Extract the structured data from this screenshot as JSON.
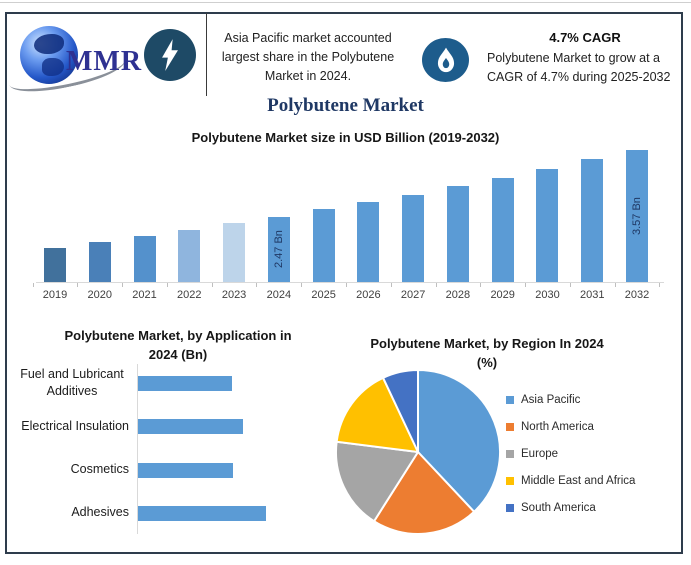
{
  "brand": {
    "name": "MMR"
  },
  "header": {
    "stat1": {
      "icon": "lightning-bolt",
      "lines": [
        "Asia Pacific market accounted",
        "largest share in the Polybutene",
        "Market in 2024."
      ]
    },
    "stat2": {
      "icon": "flame",
      "heading": "4.7% CAGR",
      "lines": [
        "Polybutene Market to grow at a",
        "CAGR of 4.7% during 2025-2032"
      ]
    }
  },
  "page_title": "Polybutene Market",
  "colors": {
    "accent_blue": "#5b9bd5",
    "navy_title": "#1f3864",
    "frame_border": "#2e3c4c",
    "lightning_circle": "#1e4a66",
    "flame_circle": "#1d5c8c",
    "logo_blue": "#2e3192"
  },
  "chart_data": [
    {
      "type": "bar",
      "title": "Polybutene Market size in USD Billion (2019-2032)",
      "categories": [
        "2019",
        "2020",
        "2021",
        "2022",
        "2023",
        "2024",
        "2025",
        "2026",
        "2027",
        "2028",
        "2029",
        "2030",
        "2031",
        "2032"
      ],
      "values": [
        1.96,
        2.05,
        2.15,
        2.25,
        2.36,
        2.47,
        2.59,
        2.71,
        2.83,
        2.97,
        3.11,
        3.25,
        3.41,
        3.57
      ],
      "unit": "USD Billion",
      "data_labels": [
        "",
        "",
        "",
        "",
        "",
        "2.47 Bn",
        "",
        "",
        "",
        "",
        "",
        "",
        "",
        "3.57 Bn"
      ],
      "bar_colors": [
        "#41719c",
        "#4a80b8",
        "#5491cc",
        "#8fb5de",
        "#bdd4ea",
        "#5b9bd5",
        "#5b9bd5",
        "#5b9bd5",
        "#5b9bd5",
        "#5b9bd5",
        "#5b9bd5",
        "#5b9bd5",
        "#5b9bd5",
        "#5b9bd5"
      ],
      "value_axis_visible": false,
      "grid": false,
      "legend": "none"
    },
    {
      "type": "bar",
      "orientation": "horizontal",
      "title": "Polybutene Market, by Application in 2024 (Bn)",
      "title_lines": [
        "Polybutene Market, by Application in",
        "2024 (Bn)"
      ],
      "categories": [
        "Fuel and Lubricant Additives",
        "Electrical Insulation",
        "Cosmetics",
        "Adhesives"
      ],
      "category_label_lines": [
        [
          "Fuel and Lubricant",
          "Additives"
        ],
        [
          "Electrical Insulation"
        ],
        [
          "Cosmetics"
        ],
        [
          "Adhesives"
        ]
      ],
      "values": [
        0.55,
        0.62,
        0.56,
        0.75
      ],
      "unit": "Bn",
      "bar_color": "#5b9bd5",
      "value_axis_visible": false,
      "grid": false,
      "legend": "none"
    },
    {
      "type": "pie",
      "title": "Polybutene Market, by Region In 2024 (%)",
      "title_lines": [
        "Polybutene Market, by Region In 2024",
        "(%)"
      ],
      "labels": [
        "Asia Pacific",
        "North America",
        "Europe",
        "Middle East and Africa",
        "South America"
      ],
      "values": [
        38,
        21,
        18,
        16,
        7
      ],
      "unit": "%",
      "colors": [
        "#5b9bd5",
        "#ed7d31",
        "#a5a5a5",
        "#ffc000",
        "#4472c4"
      ],
      "legend_position": "right",
      "start_angle_deg": 0,
      "direction": "clockwise"
    }
  ]
}
